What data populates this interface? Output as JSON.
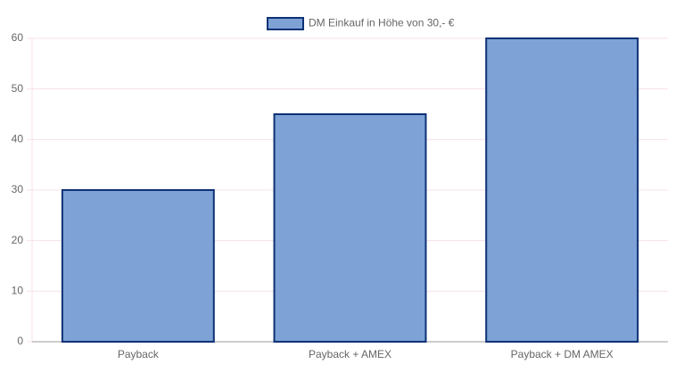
{
  "chart_data": {
    "type": "bar",
    "categories": [
      "Payback",
      "Payback + AMEX",
      "Payback + DM AMEX"
    ],
    "series": [
      {
        "name": "DM Einkauf in Höhe von 30,- €",
        "color": "#7ea1d6",
        "border_color": "#0d3276",
        "values": [
          30,
          45,
          60
        ]
      }
    ],
    "ylim": [
      0,
      60
    ],
    "yticks": [
      0,
      10,
      20,
      30,
      40,
      50,
      60
    ],
    "grid": true,
    "legend": "top"
  }
}
